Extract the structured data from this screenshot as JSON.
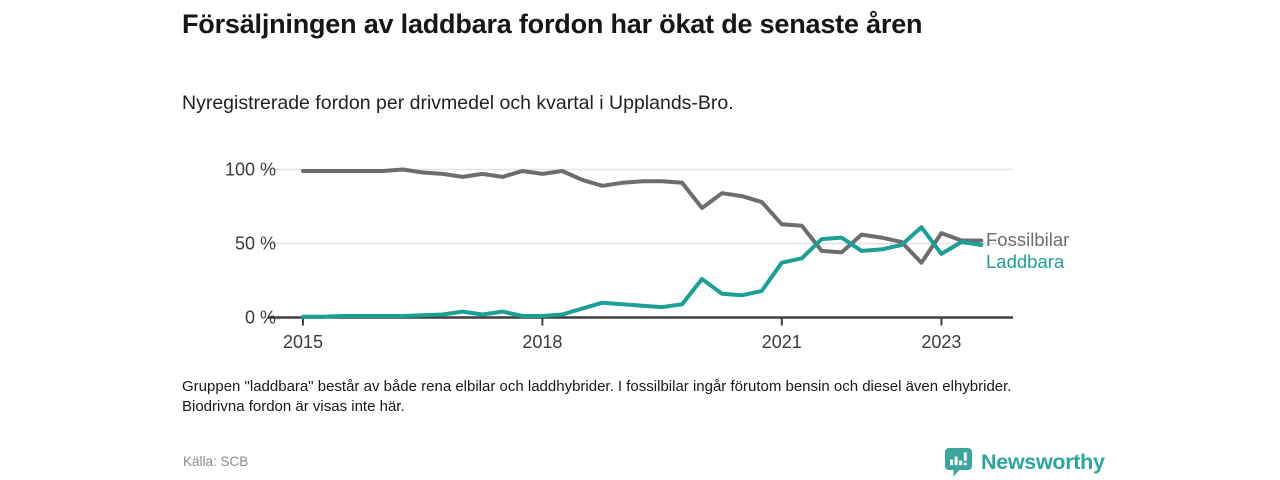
{
  "header": {
    "title": "Försäljningen av laddbara fordon har ökat de senaste åren",
    "subtitle": "Nyregistrerade fordon per drivmedel och kvartal i Upplands-Bro."
  },
  "chart_data": {
    "type": "line",
    "unit": "%",
    "quarters": [
      "2015Q1",
      "2015Q2",
      "2015Q3",
      "2015Q4",
      "2016Q1",
      "2016Q2",
      "2016Q3",
      "2016Q4",
      "2017Q1",
      "2017Q2",
      "2017Q3",
      "2017Q4",
      "2018Q1",
      "2018Q2",
      "2018Q3",
      "2018Q4",
      "2019Q1",
      "2019Q2",
      "2019Q3",
      "2019Q4",
      "2020Q1",
      "2020Q2",
      "2020Q3",
      "2020Q4",
      "2021Q1",
      "2021Q2",
      "2021Q3",
      "2021Q4",
      "2022Q1",
      "2022Q2",
      "2022Q3",
      "2022Q4",
      "2023Q1",
      "2023Q2",
      "2023Q3"
    ],
    "series": [
      {
        "name": "Fossilbilar",
        "color": "#6c6c71",
        "values": [
          99,
          99,
          99,
          99,
          99,
          100,
          98,
          97,
          95,
          97,
          95,
          99,
          97,
          99,
          93,
          89,
          91,
          92,
          92,
          91,
          74,
          84,
          82,
          78,
          63,
          62,
          45,
          44,
          56,
          54,
          51,
          37,
          57,
          52,
          52
        ]
      },
      {
        "name": "Laddbara",
        "color": "#1aa096",
        "values": [
          0.5,
          0.5,
          1,
          1,
          1,
          1,
          1.5,
          2,
          4,
          2,
          4,
          1,
          1,
          2,
          6,
          10,
          9,
          8,
          7,
          9,
          26,
          16,
          15,
          18,
          37,
          40,
          53,
          54,
          45,
          46,
          49,
          61,
          43,
          51,
          49
        ]
      }
    ],
    "y_ticks": [
      {
        "value": 0,
        "label": "0 %"
      },
      {
        "value": 50,
        "label": "50 %"
      },
      {
        "value": 100,
        "label": "100 %"
      }
    ],
    "x_ticks": [
      {
        "year": 2015,
        "label": "2015"
      },
      {
        "year": 2018,
        "label": "2018"
      },
      {
        "year": 2021,
        "label": "2021"
      },
      {
        "year": 2023,
        "label": "2023"
      }
    ],
    "ylim": [
      0,
      100
    ],
    "grid": "horizontal",
    "legend_position": "end-of-lines",
    "colors": {
      "axis": "#3f3f3f",
      "gridline": "#e3e3e3",
      "tick_text": "#3b3b3b"
    }
  },
  "note": "Gruppen \"laddbara\" består av både rena elbilar och laddhybrider. I fossilbilar ingår förutom bensin och diesel även elhybrider. Biodrivna fordon är visas inte här.",
  "source": "Källa: SCB",
  "branding": {
    "name": "Newsworthy",
    "text_color": "#2ba69c",
    "icon_color": "#3aa69e",
    "icon": "speech-bubble-bar-chart"
  }
}
